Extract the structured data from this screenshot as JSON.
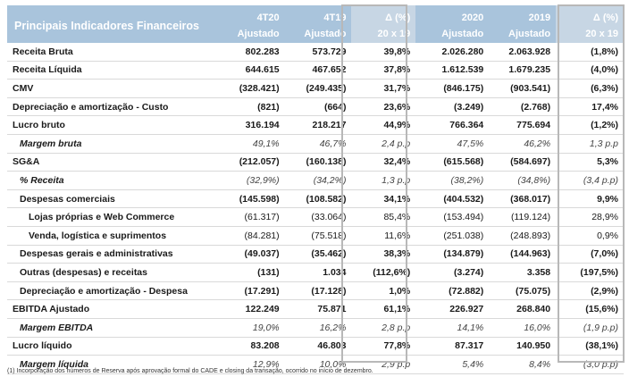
{
  "table": {
    "title": "Principais Indicadores Financeiros",
    "headers_top": [
      "4T20",
      "4T19",
      "Δ (%)",
      "2020",
      "2019",
      "Δ (%)"
    ],
    "headers_bottom": [
      "Ajustado",
      "Ajustado",
      "20 x 19",
      "Ajustado",
      "Ajustado",
      "20 x 19"
    ],
    "rows": [
      {
        "label": "Receita Bruta",
        "values": [
          "802.283",
          "573.729",
          "39,8%",
          "2.026.280",
          "2.063.928",
          "(1,8%)"
        ]
      },
      {
        "label": "Receita Líquida",
        "values": [
          "644.615",
          "467.652",
          "37,8%",
          "1.612.539",
          "1.679.235",
          "(4,0%)"
        ]
      },
      {
        "label": "CMV",
        "values": [
          "(328.421)",
          "(249.435)",
          "31,7%",
          "(846.175)",
          "(903.541)",
          "(6,3%)"
        ]
      },
      {
        "label": "Depreciação e amortização - Custo",
        "values": [
          "(821)",
          "(664)",
          "23,6%",
          "(3.249)",
          "(2.768)",
          "17,4%"
        ]
      },
      {
        "label": "Lucro bruto",
        "values": [
          "316.194",
          "218.217",
          "44,9%",
          "766.364",
          "775.694",
          "(1,2%)"
        ]
      },
      {
        "label": "Margem bruta",
        "values": [
          "49,1%",
          "46,7%",
          "2,4 p.p",
          "47,5%",
          "46,2%",
          "1,3 p.p"
        ]
      },
      {
        "label": "SG&A",
        "values": [
          "(212.057)",
          "(160.138)",
          "32,4%",
          "(615.568)",
          "(584.697)",
          "5,3%"
        ]
      },
      {
        "label": "% Receita",
        "values": [
          "(32,9%)",
          "(34,2%)",
          "1,3 p.p",
          "(38,2%)",
          "(34,8%)",
          "(3,4 p.p)"
        ]
      },
      {
        "label": "Despesas comerciais",
        "values": [
          "(145.598)",
          "(108.582)",
          "34,1%",
          "(404.532)",
          "(368.017)",
          "9,9%"
        ]
      },
      {
        "label": "Lojas próprias e Web Commerce",
        "values": [
          "(61.317)",
          "(33.064)",
          "85,4%",
          "(153.494)",
          "(119.124)",
          "28,9%"
        ]
      },
      {
        "label": "Venda, logística e suprimentos",
        "values": [
          "(84.281)",
          "(75.518)",
          "11,6%",
          "(251.038)",
          "(248.893)",
          "0,9%"
        ]
      },
      {
        "label": "Despesas gerais e administrativas",
        "values": [
          "(49.037)",
          "(35.462)",
          "38,3%",
          "(134.879)",
          "(144.963)",
          "(7,0%)"
        ]
      },
      {
        "label": "Outras (despesas) e receitas",
        "values": [
          "(131)",
          "1.034",
          "(112,6%)",
          "(3.274)",
          "3.358",
          "(197,5%)"
        ]
      },
      {
        "label": "Depreciação e amortização - Despesa",
        "values": [
          "(17.291)",
          "(17.128)",
          "1,0%",
          "(72.882)",
          "(75.075)",
          "(2,9%)"
        ]
      },
      {
        "label": "EBITDA Ajustado",
        "values": [
          "122.249",
          "75.871",
          "61,1%",
          "226.927",
          "268.840",
          "(15,6%)"
        ]
      },
      {
        "label": "Margem EBITDA",
        "values": [
          "19,0%",
          "16,2%",
          "2,8 p.p",
          "14,1%",
          "16,0%",
          "(1,9 p.p)"
        ]
      },
      {
        "label": "Lucro líquido",
        "values": [
          "83.208",
          "46.803",
          "77,8%",
          "87.317",
          "140.950",
          "(38,1%)"
        ]
      },
      {
        "label": "Margem líquida",
        "values": [
          "12,9%",
          "10,0%",
          "2,9 p.p",
          "5,4%",
          "8,4%",
          "(3,0 p.p)"
        ]
      }
    ]
  },
  "footnote": "(1) Incorporação dos números de Reserva após aprovação formal do CADE e closing da transação, ocorrido no início de dezembro."
}
